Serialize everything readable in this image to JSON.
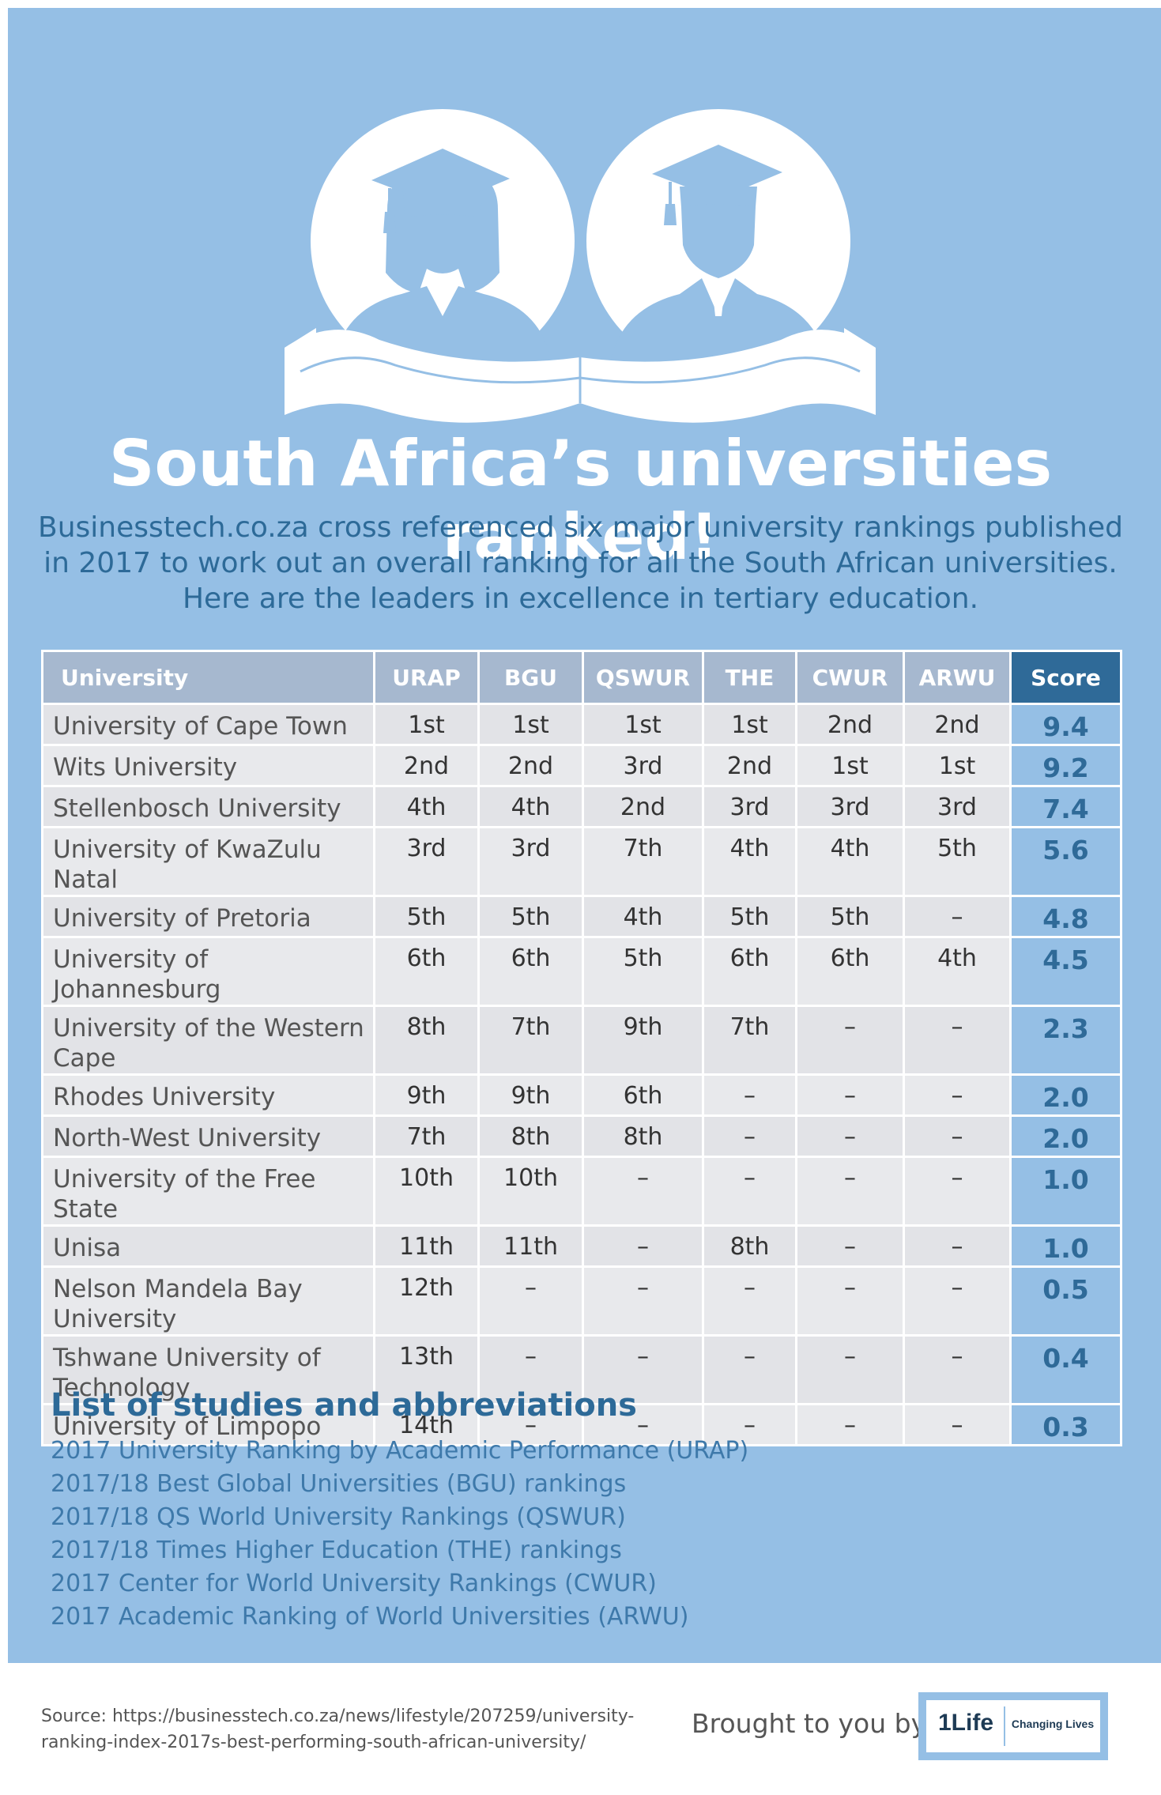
{
  "title": "South Africa’s universities ranked!",
  "intro": "Businesstech.co.za  cross referenced six major university rankings published in 2017 to work out an overall ranking for all the South African universities. Here are the leaders in excellence in tertiary education.",
  "table": {
    "headers": [
      "University",
      "URAP",
      "BGU",
      "QSWUR",
      "THE",
      "CWUR",
      "ARWU",
      "Score"
    ],
    "rows": [
      {
        "university": "University of Cape Town",
        "urap": "1st",
        "bgu": "1st",
        "qswur": "1st",
        "the": "1st",
        "cwur": "2nd",
        "arwu": "2nd",
        "score": "9.4"
      },
      {
        "university": "Wits University",
        "urap": "2nd",
        "bgu": "2nd",
        "qswur": "3rd",
        "the": "2nd",
        "cwur": "1st",
        "arwu": "1st",
        "score": "9.2"
      },
      {
        "university": "Stellenbosch University",
        "urap": "4th",
        "bgu": "4th",
        "qswur": "2nd",
        "the": "3rd",
        "cwur": "3rd",
        "arwu": "3rd",
        "score": "7.4"
      },
      {
        "university": "University of KwaZulu Natal",
        "urap": "3rd",
        "bgu": "3rd",
        "qswur": "7th",
        "the": "4th",
        "cwur": "4th",
        "arwu": "5th",
        "score": "5.6"
      },
      {
        "university": "University of Pretoria",
        "urap": "5th",
        "bgu": "5th",
        "qswur": "4th",
        "the": "5th",
        "cwur": "5th",
        "arwu": "–",
        "score": "4.8"
      },
      {
        "university": "University of Johannesburg",
        "urap": "6th",
        "bgu": "6th",
        "qswur": "5th",
        "the": "6th",
        "cwur": "6th",
        "arwu": "4th",
        "score": "4.5"
      },
      {
        "university": "University of the Western Cape",
        "urap": "8th",
        "bgu": "7th",
        "qswur": "9th",
        "the": "7th",
        "cwur": "–",
        "arwu": "–",
        "score": "2.3"
      },
      {
        "university": "Rhodes University",
        "urap": "9th",
        "bgu": "9th",
        "qswur": "6th",
        "the": "–",
        "cwur": "–",
        "arwu": "–",
        "score": "2.0"
      },
      {
        "university": "North-West University",
        "urap": "7th",
        "bgu": "8th",
        "qswur": "8th",
        "the": "–",
        "cwur": "–",
        "arwu": "–",
        "score": "2.0"
      },
      {
        "university": "University of the Free State",
        "urap": "10th",
        "bgu": "10th",
        "qswur": "–",
        "the": "–",
        "cwur": "–",
        "arwu": "–",
        "score": "1.0"
      },
      {
        "university": "Unisa",
        "urap": "11th",
        "bgu": "11th",
        "qswur": "–",
        "the": "8th",
        "cwur": "–",
        "arwu": "–",
        "score": "1.0"
      },
      {
        "university": "Nelson Mandela Bay University",
        "urap": "12th",
        "bgu": "–",
        "qswur": "–",
        "the": "–",
        "cwur": "–",
        "arwu": "–",
        "score": "0.5"
      },
      {
        "university": "Tshwane University of Technology",
        "urap": "13th",
        "bgu": "–",
        "qswur": "–",
        "the": "–",
        "cwur": "–",
        "arwu": "–",
        "score": "0.4"
      },
      {
        "university": "University of Limpopo",
        "urap": "14th",
        "bgu": "–",
        "qswur": "–",
        "the": "–",
        "cwur": "–",
        "arwu": "–",
        "score": "0.3"
      }
    ]
  },
  "abbreviations": {
    "title": "List of studies and abbreviations",
    "items": [
      "2017 University Ranking by Academic Performance (URAP)",
      "2017/18 Best Global Universities (BGU) rankings",
      "2017/18 QS World University Rankings (QSWUR)",
      "2017/18 Times Higher Education (THE) rankings",
      "2017 Center for World University Rankings (CWUR)",
      "2017 Academic Ranking of World Universities (ARWU)"
    ]
  },
  "footer": {
    "source": "Source: https://businesstech.co.za/news/lifestyle/207259/university-ranking-index-2017s-best-performing-south-african-university/",
    "brought_by": "Brought to you by:",
    "logo_text": "1Life",
    "logo_tagline": "Changing Lives"
  },
  "colors": {
    "background": "#95bfe5",
    "accent": "#2f6a98",
    "header_cell": "#a6b8cf",
    "row_cell": "#e2e3e7"
  },
  "icons": [
    "female-graduate-icon",
    "male-graduate-icon",
    "open-book-ribbon-icon"
  ]
}
